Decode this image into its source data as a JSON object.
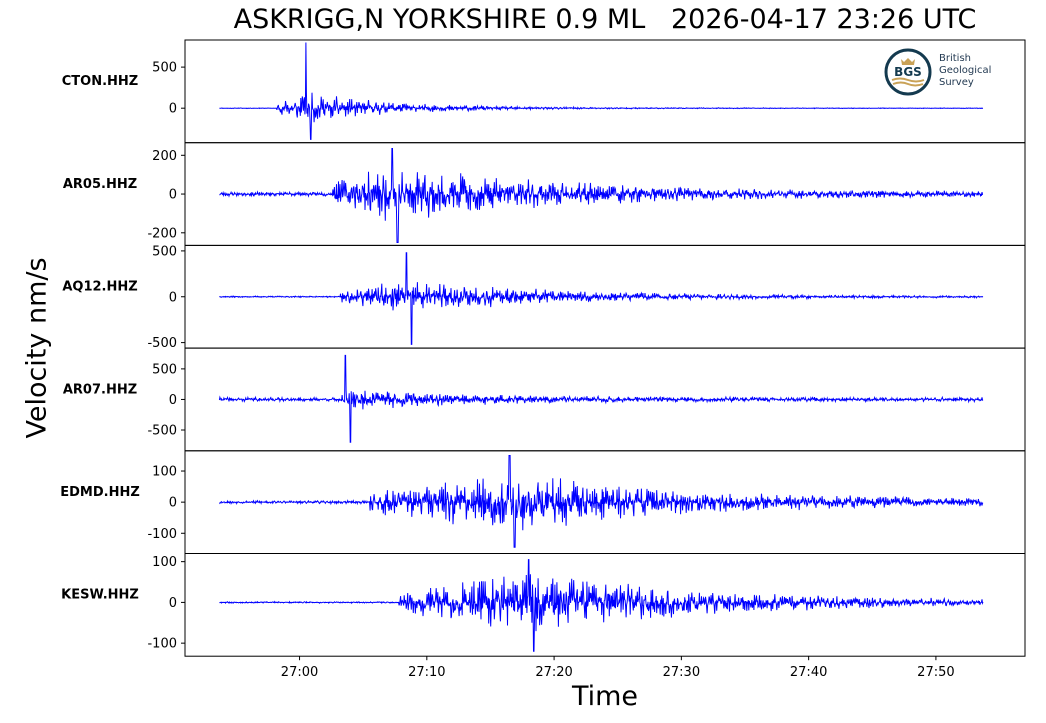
{
  "title": "ASKRIGG,N YORKSHIRE 0.9 ML   2026-04-17 23:26 UTC",
  "ylabel": "Velocity nm/s",
  "xlabel": "Time",
  "logo": {
    "abbr": "BGS",
    "line1": "British",
    "line2": "Geological",
    "line3": "Survey"
  },
  "colors": {
    "trace": "#0000ff",
    "logo_ring": "#143a4f",
    "logo_gold": "#c9a257"
  },
  "chart_data": {
    "type": "line",
    "x_unit": "time (mm:ss within 23:xx UTC)",
    "x_ticks": [
      "27:00",
      "27:10",
      "27:20",
      "27:30",
      "27:40",
      "27:50"
    ],
    "x_range": [
      "26:53",
      "27:53"
    ],
    "x_tick_seconds": [
      0,
      10,
      20,
      30,
      40,
      50
    ],
    "x_lim_seconds": [
      -9,
      57
    ],
    "trace_range_seconds": [
      -6.3,
      53.7
    ],
    "series": [
      {
        "name": "CTON.HHZ",
        "yticks": [
          500,
          0
        ],
        "yticklabels": [
          "500",
          "0"
        ],
        "ylim": [
          -420,
          830
        ],
        "onset": -1.8,
        "peak": 800,
        "peak_t": 0.5,
        "noise": 4,
        "coda_amp": 200,
        "decay": 7,
        "spike_neg": -380,
        "seed": 11
      },
      {
        "name": "AR05.HHZ",
        "yticks": [
          200,
          0,
          -200
        ],
        "yticklabels": [
          "200",
          "0",
          "-200"
        ],
        "ylim": [
          -265,
          265
        ],
        "onset": 2.6,
        "peak": 235,
        "peak_t": 7.3,
        "noise": 12,
        "coda_amp": 140,
        "decay": 14,
        "spike_neg": -250,
        "seed": 23
      },
      {
        "name": "AQ12.HHZ",
        "yticks": [
          500,
          0,
          -500
        ],
        "yticklabels": [
          "500",
          "0",
          "-500"
        ],
        "ylim": [
          -560,
          560
        ],
        "onset": 3.2,
        "peak": 480,
        "peak_t": 8.4,
        "noise": 8,
        "coda_amp": 190,
        "decay": 12,
        "spike_neg": -520,
        "seed": 37
      },
      {
        "name": "AR07.HHZ",
        "yticks": [
          500,
          0,
          -500
        ],
        "yticklabels": [
          "500",
          "0",
          "-500"
        ],
        "ylim": [
          -840,
          840
        ],
        "onset": 3.3,
        "peak": 720,
        "peak_t": 3.6,
        "noise": 35,
        "coda_amp": 160,
        "decay": 10,
        "spike_neg": -700,
        "seed": 41
      },
      {
        "name": "EDMD.HHZ",
        "yticks": [
          100,
          0,
          -100
        ],
        "yticklabels": [
          "100",
          "0",
          "-100"
        ],
        "ylim": [
          -165,
          165
        ],
        "onset": 5.5,
        "peak": 150,
        "peak_t": 16.5,
        "noise": 5,
        "coda_amp": 95,
        "decay": 16,
        "spike_neg": -145,
        "seed": 53
      },
      {
        "name": "KESW.HHZ",
        "yticks": [
          100,
          0,
          -100
        ],
        "yticklabels": [
          "100",
          "0",
          "-100"
        ],
        "ylim": [
          -132,
          120
        ],
        "onset": 7.8,
        "peak": 105,
        "peak_t": 18.0,
        "noise": 2,
        "coda_amp": 75,
        "decay": 15,
        "spike_neg": -120,
        "seed": 67
      }
    ]
  }
}
